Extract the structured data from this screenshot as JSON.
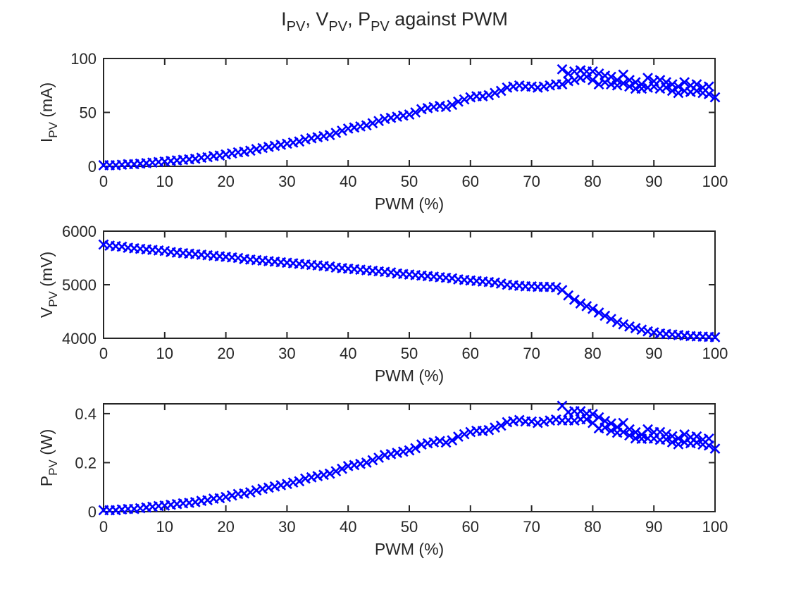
{
  "figure": {
    "title_parts": [
      "I",
      "PV",
      ", V",
      "PV",
      ", P",
      "PV",
      " against PWM"
    ]
  },
  "chart_data": [
    {
      "type": "scatter",
      "marker": "x",
      "color": "#0000ff",
      "xlabel": "PWM (%)",
      "ylabel_main": "I",
      "ylabel_sub": "PV",
      "ylabel_unit": " (mA)",
      "xlim": [
        0,
        100
      ],
      "ylim": [
        0,
        100
      ],
      "xticks": [
        0,
        10,
        20,
        30,
        40,
        50,
        60,
        70,
        80,
        90,
        100
      ],
      "yticks": [
        0,
        50,
        100
      ],
      "ytick_labels": [
        "0",
        "50",
        "100"
      ],
      "grid": false,
      "series": [
        {
          "x": [
            0,
            1,
            2,
            3,
            4,
            5,
            6,
            7,
            8,
            9,
            10,
            11,
            12,
            13,
            14,
            15,
            16,
            17,
            18,
            19,
            20,
            21,
            22,
            23,
            24,
            25,
            26,
            27,
            28,
            29,
            30,
            31,
            32,
            33,
            34,
            35,
            36,
            37,
            38,
            39,
            40,
            41,
            42,
            43,
            44,
            45,
            46,
            47,
            48,
            49,
            50,
            51,
            52,
            53,
            54,
            55,
            56,
            57,
            58,
            59,
            60,
            61,
            62,
            63,
            64,
            65,
            66,
            67,
            68,
            69,
            70,
            71,
            72,
            73,
            74,
            75,
            75,
            76,
            76,
            77,
            77,
            78,
            78,
            79,
            79,
            80,
            80,
            81,
            81,
            82,
            82,
            83,
            83,
            84,
            84,
            85,
            85,
            86,
            86,
            87,
            87,
            88,
            88,
            89,
            89,
            90,
            90,
            91,
            91,
            92,
            92,
            93,
            93,
            94,
            94,
            95,
            95,
            96,
            96,
            97,
            97,
            98,
            98,
            99,
            99,
            100
          ],
          "y": [
            1,
            1,
            1,
            1.5,
            2,
            2,
            2.5,
            3,
            3.5,
            4,
            4.5,
            5,
            5.5,
            6,
            6.5,
            7,
            8,
            8.5,
            9.5,
            10,
            11,
            12,
            13,
            13.5,
            14.5,
            16,
            17,
            18,
            19,
            20,
            21,
            22,
            23,
            25,
            26,
            27,
            28,
            29,
            31,
            33,
            35,
            36,
            37,
            38,
            40,
            42,
            44,
            45,
            46,
            47,
            48,
            50,
            53,
            54,
            55,
            56,
            55,
            57,
            60,
            62,
            64,
            65,
            65,
            66,
            68,
            70,
            73,
            74,
            75,
            74,
            74,
            73,
            74,
            75,
            76,
            76,
            90,
            79,
            86,
            80,
            88,
            82,
            89,
            83,
            88,
            80,
            88,
            76,
            86,
            78,
            84,
            76,
            83,
            75,
            80,
            77,
            85,
            74,
            80,
            72,
            78,
            72,
            76,
            73,
            82,
            74,
            79,
            72,
            80,
            73,
            78,
            70,
            76,
            68,
            74,
            70,
            78,
            69,
            75,
            70,
            76,
            68,
            73,
            67,
            74,
            64
          ]
        }
      ]
    },
    {
      "type": "scatter",
      "marker": "x",
      "color": "#0000ff",
      "xlabel": "PWM (%)",
      "ylabel_main": "V",
      "ylabel_sub": "PV",
      "ylabel_unit": " (mV)",
      "xlim": [
        0,
        100
      ],
      "ylim": [
        4000,
        6000
      ],
      "xticks": [
        0,
        10,
        20,
        30,
        40,
        50,
        60,
        70,
        80,
        90,
        100
      ],
      "yticks": [
        4000,
        5000,
        6000
      ],
      "ytick_labels": [
        "4000",
        "5000",
        "6000"
      ],
      "grid": false,
      "series": [
        {
          "x": [
            0,
            1,
            2,
            3,
            4,
            5,
            6,
            7,
            8,
            9,
            10,
            11,
            12,
            13,
            14,
            15,
            16,
            17,
            18,
            19,
            20,
            21,
            22,
            23,
            24,
            25,
            26,
            27,
            28,
            29,
            30,
            31,
            32,
            33,
            34,
            35,
            36,
            37,
            38,
            39,
            40,
            41,
            42,
            43,
            44,
            45,
            46,
            47,
            48,
            49,
            50,
            51,
            52,
            53,
            54,
            55,
            56,
            57,
            58,
            59,
            60,
            61,
            62,
            63,
            64,
            65,
            66,
            67,
            68,
            69,
            70,
            71,
            72,
            73,
            74,
            75,
            76,
            77,
            78,
            79,
            80,
            81,
            82,
            83,
            84,
            85,
            86,
            87,
            88,
            89,
            90,
            91,
            92,
            93,
            94,
            95,
            96,
            97,
            98,
            99,
            100
          ],
          "y": [
            5750,
            5730,
            5720,
            5710,
            5690,
            5680,
            5670,
            5660,
            5650,
            5640,
            5630,
            5610,
            5600,
            5590,
            5580,
            5570,
            5560,
            5550,
            5540,
            5530,
            5520,
            5510,
            5500,
            5480,
            5470,
            5460,
            5450,
            5440,
            5430,
            5420,
            5410,
            5400,
            5390,
            5380,
            5370,
            5360,
            5350,
            5340,
            5320,
            5310,
            5300,
            5290,
            5280,
            5270,
            5260,
            5250,
            5240,
            5230,
            5210,
            5200,
            5190,
            5180,
            5170,
            5160,
            5150,
            5140,
            5130,
            5120,
            5100,
            5090,
            5080,
            5070,
            5060,
            5050,
            5040,
            5020,
            5000,
            4990,
            4980,
            4970,
            4970,
            4960,
            4960,
            4960,
            4950,
            4900,
            4800,
            4720,
            4650,
            4600,
            4550,
            4480,
            4420,
            4360,
            4300,
            4260,
            4220,
            4190,
            4160,
            4130,
            4110,
            4090,
            4080,
            4070,
            4060,
            4050,
            4040,
            4035,
            4030,
            4025,
            4020
          ]
        }
      ]
    },
    {
      "type": "scatter",
      "marker": "x",
      "color": "#0000ff",
      "xlabel": "PWM (%)",
      "ylabel_main": "P",
      "ylabel_sub": "PV",
      "ylabel_unit": " (W)",
      "xlim": [
        0,
        100
      ],
      "ylim": [
        0,
        0.44
      ],
      "xticks": [
        0,
        10,
        20,
        30,
        40,
        50,
        60,
        70,
        80,
        90,
        100
      ],
      "yticks": [
        0,
        0.2,
        0.4
      ],
      "ytick_labels": [
        "0",
        "0.2",
        "0.4"
      ],
      "grid": false,
      "series": [
        {
          "x": [
            0,
            1,
            2,
            3,
            4,
            5,
            6,
            7,
            8,
            9,
            10,
            11,
            12,
            13,
            14,
            15,
            16,
            17,
            18,
            19,
            20,
            21,
            22,
            23,
            24,
            25,
            26,
            27,
            28,
            29,
            30,
            31,
            32,
            33,
            34,
            35,
            36,
            37,
            38,
            39,
            40,
            41,
            42,
            43,
            44,
            45,
            46,
            47,
            48,
            49,
            50,
            51,
            52,
            53,
            54,
            55,
            56,
            57,
            58,
            59,
            60,
            61,
            62,
            63,
            64,
            65,
            66,
            67,
            68,
            69,
            70,
            71,
            72,
            73,
            74,
            75,
            75,
            76,
            76,
            77,
            77,
            78,
            78,
            79,
            79,
            80,
            80,
            81,
            81,
            82,
            82,
            83,
            83,
            84,
            84,
            85,
            85,
            86,
            86,
            87,
            87,
            88,
            88,
            89,
            89,
            90,
            90,
            91,
            91,
            92,
            92,
            93,
            93,
            94,
            94,
            95,
            95,
            96,
            96,
            97,
            97,
            98,
            98,
            99,
            99,
            100
          ],
          "y": [
            0.006,
            0.006,
            0.006,
            0.009,
            0.011,
            0.011,
            0.014,
            0.017,
            0.02,
            0.023,
            0.025,
            0.028,
            0.031,
            0.034,
            0.036,
            0.039,
            0.044,
            0.047,
            0.053,
            0.055,
            0.06,
            0.066,
            0.072,
            0.074,
            0.079,
            0.087,
            0.093,
            0.098,
            0.103,
            0.108,
            0.113,
            0.119,
            0.124,
            0.135,
            0.14,
            0.145,
            0.15,
            0.155,
            0.165,
            0.175,
            0.186,
            0.19,
            0.195,
            0.2,
            0.21,
            0.22,
            0.231,
            0.235,
            0.24,
            0.245,
            0.25,
            0.259,
            0.274,
            0.279,
            0.283,
            0.288,
            0.282,
            0.291,
            0.306,
            0.316,
            0.325,
            0.33,
            0.329,
            0.333,
            0.343,
            0.351,
            0.365,
            0.369,
            0.374,
            0.368,
            0.368,
            0.362,
            0.367,
            0.372,
            0.376,
            0.372,
            0.432,
            0.373,
            0.406,
            0.372,
            0.41,
            0.377,
            0.41,
            0.377,
            0.4,
            0.362,
            0.398,
            0.34,
            0.385,
            0.343,
            0.37,
            0.33,
            0.36,
            0.322,
            0.345,
            0.325,
            0.362,
            0.311,
            0.336,
            0.299,
            0.324,
            0.297,
            0.314,
            0.299,
            0.336,
            0.298,
            0.324,
            0.293,
            0.325,
            0.295,
            0.316,
            0.283,
            0.308,
            0.275,
            0.299,
            0.283,
            0.315,
            0.279,
            0.304,
            0.282,
            0.307,
            0.274,
            0.294,
            0.27,
            0.298,
            0.257
          ]
        }
      ]
    }
  ]
}
